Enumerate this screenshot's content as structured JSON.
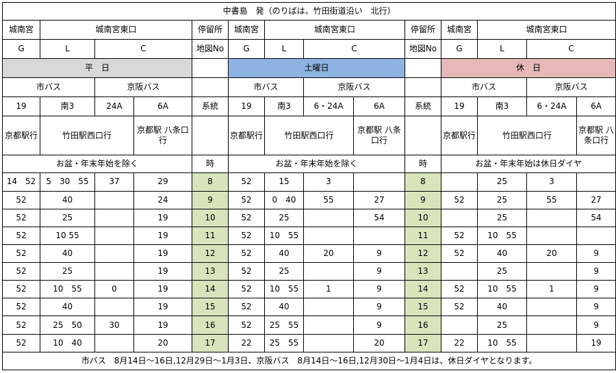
{
  "title": "中書島　発（のりばは、竹田街道沿い　北行）",
  "stop_row": [
    "城南宮",
    "城南宮東口",
    "停留所",
    "城南宮",
    "城南宮東口",
    "停留所",
    "城南宮",
    "城南宮東口"
  ],
  "code_row": [
    "G",
    "L",
    "C",
    "地図No",
    "G",
    "L",
    "C",
    "地図No",
    "G",
    "L",
    "C"
  ],
  "sections": {
    "weekday": "平　日",
    "saturday": "土曜日",
    "holiday": "休　日"
  },
  "operators": {
    "city": "市バス",
    "keihan": "京阪バス"
  },
  "routes": {
    "weekday": [
      "19",
      "南3",
      "24A",
      "6A"
    ],
    "saturday": [
      "19",
      "南3",
      "6・24A",
      "6A"
    ],
    "holiday": [
      "19",
      "南3",
      "6・24A",
      "6A"
    ],
    "label": "系統"
  },
  "dest": {
    "kyoto": "京都駅行",
    "takeda": "竹田駅西口行",
    "hachijo": "京都駅\n八条口行"
  },
  "notes": {
    "weekday": "お盆・年末年始を除く",
    "saturday": "お盆・年末年始を除く",
    "holiday": "お盆・年末年始は休日ダイヤ",
    "hour_label": "時"
  },
  "rows": [
    {
      "hour": "8",
      "wd": [
        "14　52",
        "5　30　55",
        "37",
        "29"
      ],
      "sa": [
        "52",
        "15",
        "3",
        ""
      ],
      "ho": [
        "",
        "25",
        "3",
        ""
      ]
    },
    {
      "hour": "9",
      "wd": [
        "52",
        "40",
        "",
        "24"
      ],
      "sa": [
        "52",
        "0　40",
        "55",
        "27"
      ],
      "ho": [
        "52",
        "25",
        "55",
        "27"
      ]
    },
    {
      "hour": "10",
      "wd": [
        "52",
        "25",
        "",
        "19"
      ],
      "sa": [
        "52",
        "25",
        "",
        "54"
      ],
      "ho": [
        "",
        "25",
        "",
        "54"
      ]
    },
    {
      "hour": "11",
      "wd": [
        "52",
        "10 55",
        "",
        "19"
      ],
      "sa": [
        "52",
        "10　55",
        "",
        ""
      ],
      "ho": [
        "52",
        "10　55",
        "",
        ""
      ]
    },
    {
      "hour": "12",
      "wd": [
        "52",
        "40",
        "",
        "19"
      ],
      "sa": [
        "52",
        "40",
        "20",
        "9"
      ],
      "ho": [
        "52",
        "40",
        "20",
        "9"
      ]
    },
    {
      "hour": "13",
      "wd": [
        "52",
        "25",
        "",
        "19"
      ],
      "sa": [
        "52",
        "25",
        "",
        "9"
      ],
      "ho": [
        "",
        "25",
        "",
        "9"
      ]
    },
    {
      "hour": "14",
      "wd": [
        "52",
        "10　55",
        "0",
        "19"
      ],
      "sa": [
        "52",
        "10　55",
        "1",
        "9"
      ],
      "ho": [
        "52",
        "10　55",
        "1",
        "9"
      ]
    },
    {
      "hour": "15",
      "wd": [
        "52",
        "40",
        "",
        "19"
      ],
      "sa": [
        "52",
        "40",
        "",
        "9"
      ],
      "ho": [
        "52",
        "40",
        "",
        "9"
      ]
    },
    {
      "hour": "16",
      "wd": [
        "52",
        "25　50",
        "30",
        "19"
      ],
      "sa": [
        "52",
        "25　55",
        "",
        "9"
      ],
      "ho": [
        "",
        "25",
        "",
        "9"
      ]
    },
    {
      "hour": "17",
      "wd": [
        "52",
        "10　40",
        "",
        "20"
      ],
      "sa": [
        "22",
        "25　55",
        "",
        "20"
      ],
      "ho": [
        "22",
        "10　55",
        "",
        "19"
      ]
    }
  ],
  "footer": "市バス　8月14日～16日,12月29日～1月3日、京阪バス　8月14日～16日,12月30日～1月4日は、休日ダイヤとなります。",
  "colors": {
    "weekday_header": "#d8d8d8",
    "saturday_header": "#8db3e2",
    "holiday_header": "#e6b8b7",
    "hour_column": "#d8e4bc"
  }
}
